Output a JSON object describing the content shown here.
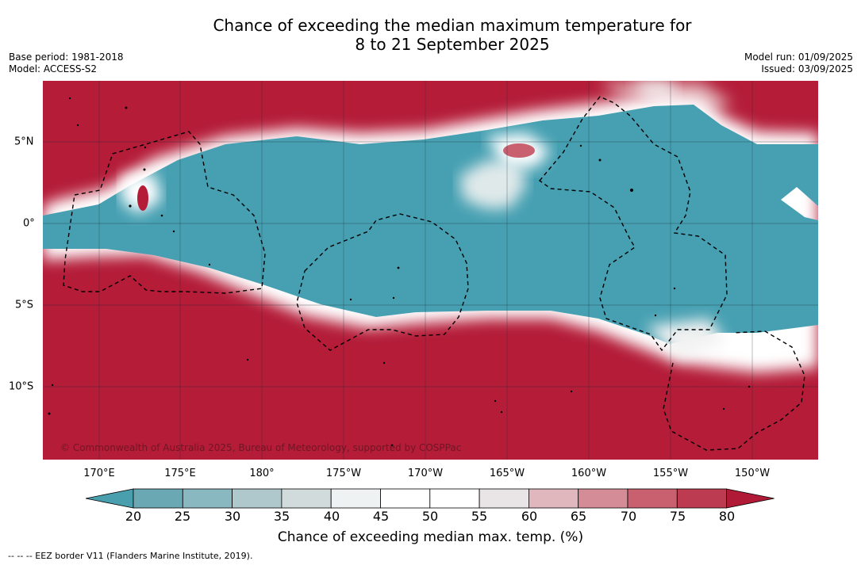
{
  "header": {
    "title_line1": "Chance of exceeding the median maximum temperature for",
    "title_line2": "8 to 21 September 2025",
    "base_period": "Base period: 1981-2018",
    "model": "Model: ACCESS-S2",
    "model_run": "Model run: 01/09/2025",
    "issued": "Issued: 03/09/2025"
  },
  "map": {
    "lon_labels": [
      "170°E",
      "175°E",
      "180°",
      "175°W",
      "170°W",
      "165°W",
      "160°W",
      "155°W",
      "150°W"
    ],
    "lat_labels": [
      "5°N",
      "0°",
      "5°S",
      "10°S"
    ],
    "copyright": "© Commonwealth of Australia 2025, Bureau of Meteorology, supported by COSPPac",
    "colors": {
      "hot": "#b41c38",
      "cool": "#46a0b2",
      "neutral": "#ffffff"
    }
  },
  "colorbar": {
    "ticks": [
      "20",
      "25",
      "30",
      "35",
      "40",
      "45",
      "50",
      "55",
      "60",
      "65",
      "70",
      "75",
      "80"
    ],
    "colors": [
      "#4a9fae",
      "#6aa9b3",
      "#8ab8c0",
      "#aec8cc",
      "#d2dbdc",
      "#eef2f3",
      "#ffffff",
      "#ffffff",
      "#e9e5e6",
      "#dfb7bd",
      "#d48c96",
      "#c8606f",
      "#bc3b50",
      "#b01a36"
    ],
    "label": "Chance of exceeding median max. temp. (%)"
  },
  "legend": {
    "eez": "--  --  -- EEZ border V11 (Flanders Marine Institute, 2019)."
  }
}
